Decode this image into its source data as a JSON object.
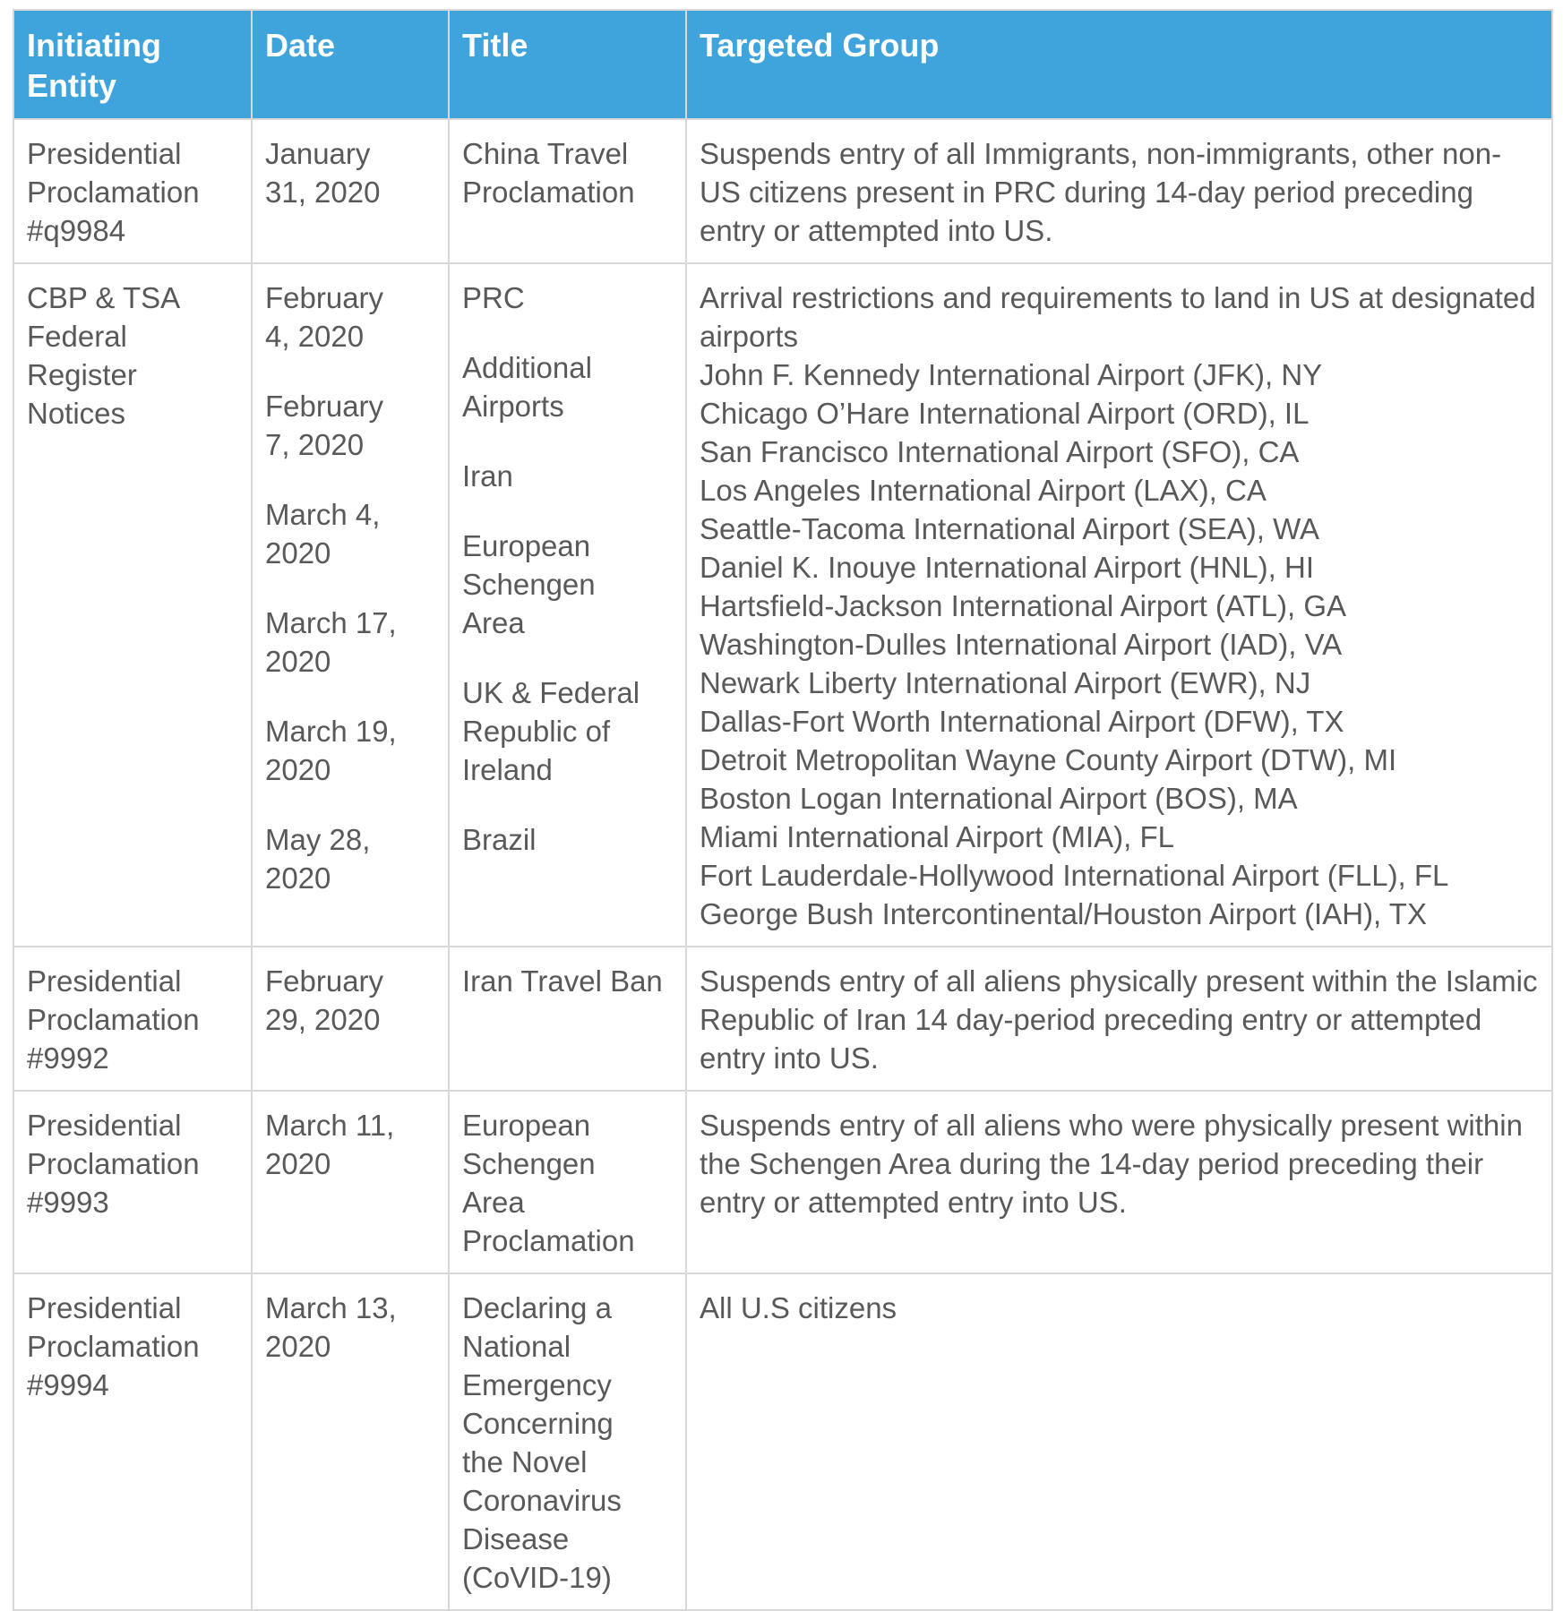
{
  "table": {
    "columns": [
      "Initiating Entity",
      "Date",
      "Title",
      "Targeted Group"
    ],
    "rows": [
      {
        "entity": "Presidential Proclamation #q9984",
        "dates": [
          "January 31, 2020"
        ],
        "titles": [
          "China Travel Proclamation"
        ],
        "targeted": [
          "Suspends entry of all Immigrants, non-immigrants, other non-US citizens present in PRC during 14-day period preceding entry or attempted into US."
        ]
      },
      {
        "entity": "CBP & TSA Federal Register Notices",
        "dates": [
          "February 4, 2020",
          "February 7, 2020",
          "March 4, 2020",
          "March 17, 2020",
          "March 19, 2020",
          "May 28, 2020"
        ],
        "titles": [
          "PRC",
          "Additional Airports",
          "Iran",
          "European Schengen Area",
          "UK & Federal Republic of Ireland",
          "Brazil"
        ],
        "targeted": [
          "Arrival restrictions and requirements to land in US at designated airports",
          "John F. Kennedy International Airport (JFK), NY",
          "Chicago O’Hare International Airport (ORD), IL",
          "San Francisco International Airport (SFO), CA",
          "Los Angeles International Airport (LAX), CA",
          "Seattle-Tacoma International Airport (SEA), WA",
          "Daniel K. Inouye International Airport (HNL), HI",
          "Hartsfield-Jackson International Airport (ATL), GA",
          "Washington-Dulles International Airport (IAD), VA",
          "Newark Liberty International Airport (EWR), NJ",
          "Dallas-Fort Worth International Airport (DFW), TX",
          "Detroit Metropolitan Wayne County Airport (DTW), MI",
          "Boston Logan International Airport (BOS), MA",
          "Miami International Airport (MIA), FL",
          "Fort Lauderdale-Hollywood International Airport (FLL), FL",
          "George Bush Intercontinental/Houston Airport (IAH), TX"
        ]
      },
      {
        "entity": "Presidential Proclamation #9992",
        "dates": [
          "February 29, 2020"
        ],
        "titles": [
          "Iran Travel Ban"
        ],
        "targeted": [
          "Suspends entry of all aliens physically present within the Islamic Republic of Iran 14 day-period preceding entry or attempted entry into US."
        ]
      },
      {
        "entity": "Presidential Proclamation #9993",
        "dates": [
          "March 11, 2020"
        ],
        "titles": [
          "European Schengen Area Proclamation"
        ],
        "targeted": [
          "Suspends entry of all aliens who were physically present within the Schengen Area during the 14-day period preceding their entry or attempted entry into US."
        ]
      },
      {
        "entity": "Presidential Proclamation #9994",
        "dates": [
          "March 13, 2020"
        ],
        "titles": [
          "Declaring a National Emergency Concerning the Novel Coronavirus Disease (CoVID-19)"
        ],
        "targeted": [
          "All U.S citizens"
        ]
      }
    ]
  },
  "colors": {
    "header_background": "#3FA3DC",
    "header_text": "#FFFFFF",
    "body_text": "#58595B",
    "cell_border": "#D8D8D8"
  }
}
